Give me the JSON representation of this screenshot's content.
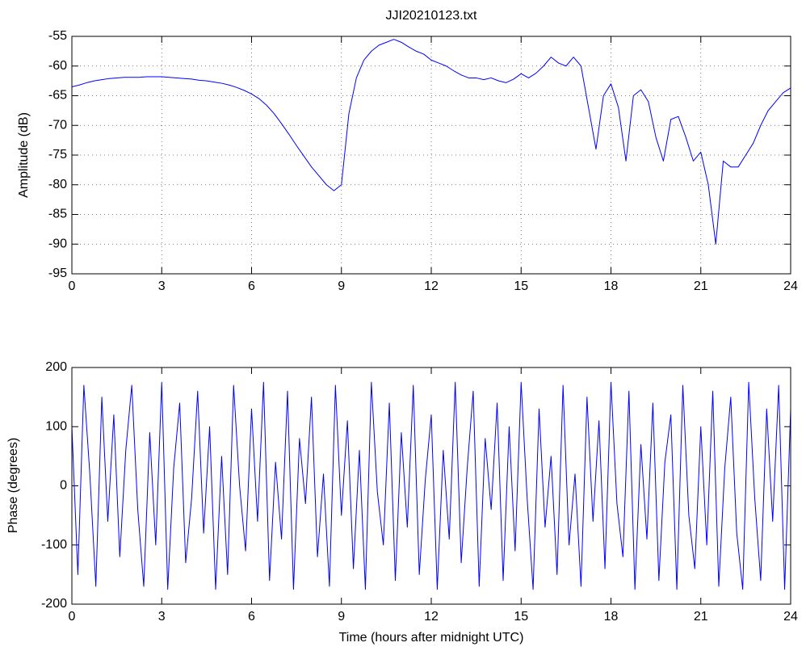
{
  "chart_data": [
    {
      "type": "line",
      "title": "JJI20210123.txt",
      "ylabel": "Amplitude (dB)",
      "color": "#0000ff",
      "grid": true,
      "xlim": [
        0,
        24
      ],
      "xticks": [
        0,
        3,
        6,
        9,
        12,
        15,
        18,
        21,
        24
      ],
      "ylim": [
        -95,
        -55
      ],
      "yticks": [
        -95,
        -90,
        -85,
        -80,
        -75,
        -70,
        -65,
        -60,
        -55
      ],
      "x": [
        0,
        0.25,
        0.5,
        0.75,
        1,
        1.25,
        1.5,
        1.75,
        2,
        2.25,
        2.5,
        2.75,
        3,
        3.25,
        3.5,
        3.75,
        4,
        4.25,
        4.5,
        4.75,
        5,
        5.25,
        5.5,
        5.75,
        6,
        6.25,
        6.5,
        6.75,
        7,
        7.25,
        7.5,
        7.75,
        8,
        8.25,
        8.5,
        8.75,
        9,
        9.25,
        9.5,
        9.75,
        10,
        10.25,
        10.5,
        10.75,
        11,
        11.25,
        11.5,
        11.75,
        12,
        12.25,
        12.5,
        12.75,
        13,
        13.25,
        13.5,
        13.75,
        14,
        14.25,
        14.5,
        14.75,
        15,
        15.25,
        15.5,
        15.75,
        16,
        16.25,
        16.5,
        16.75,
        17,
        17.25,
        17.5,
        17.75,
        18,
        18.25,
        18.5,
        18.75,
        19,
        19.25,
        19.5,
        19.75,
        20,
        20.25,
        20.5,
        20.75,
        21,
        21.25,
        21.5,
        21.75,
        22,
        22.25,
        22.5,
        22.75,
        23,
        23.25,
        23.5,
        23.75,
        24
      ],
      "values": [
        -63.5,
        -63.2,
        -62.8,
        -62.5,
        -62.3,
        -62.1,
        -62,
        -61.9,
        -61.9,
        -61.9,
        -61.8,
        -61.8,
        -61.8,
        -61.9,
        -62,
        -62.1,
        -62.2,
        -62.4,
        -62.5,
        -62.7,
        -62.9,
        -63.2,
        -63.6,
        -64.1,
        -64.7,
        -65.5,
        -66.6,
        -68,
        -69.7,
        -71.5,
        -73.4,
        -75.2,
        -77,
        -78.5,
        -80,
        -81,
        -80,
        -68,
        -62,
        -59,
        -57.5,
        -56.5,
        -56,
        -55.5,
        -56,
        -56.8,
        -57.5,
        -58,
        -59,
        -59.5,
        -60,
        -60.8,
        -61.5,
        -62,
        -62,
        -62.3,
        -62,
        -62.5,
        -62.8,
        -62.2,
        -61.3,
        -62,
        -61.2,
        -60,
        -58.5,
        -59.5,
        -60,
        -58.5,
        -60,
        -67,
        -74,
        -65,
        -63,
        -67,
        -76,
        -65,
        -64,
        -66,
        -72,
        -76,
        -69,
        -68.5,
        -72,
        -76,
        -74.5,
        -80,
        -90,
        -76,
        -77,
        -77,
        -75,
        -73,
        -70,
        -67.5,
        -66,
        -64.5,
        -63.7
      ]
    },
    {
      "type": "line",
      "ylabel": "Phase (degrees)",
      "xlabel": "Time (hours after midnight UTC)",
      "color": "#0000ff",
      "grid": false,
      "xlim": [
        0,
        24
      ],
      "xticks": [
        0,
        3,
        6,
        9,
        12,
        15,
        18,
        21,
        24
      ],
      "ylim": [
        -200,
        200
      ],
      "yticks": [
        -200,
        -100,
        0,
        100,
        200
      ],
      "x": [
        0,
        0.2,
        0.4,
        0.6,
        0.8,
        1,
        1.2,
        1.4,
        1.6,
        1.8,
        2,
        2.2,
        2.4,
        2.6,
        2.8,
        3,
        3.2,
        3.4,
        3.6,
        3.8,
        4,
        4.2,
        4.4,
        4.6,
        4.8,
        5,
        5.2,
        5.4,
        5.6,
        5.8,
        6,
        6.2,
        6.4,
        6.6,
        6.8,
        7,
        7.2,
        7.4,
        7.6,
        7.8,
        8,
        8.2,
        8.4,
        8.6,
        8.8,
        9,
        9.2,
        9.4,
        9.6,
        9.8,
        10,
        10.2,
        10.4,
        10.6,
        10.8,
        11,
        11.2,
        11.4,
        11.6,
        11.8,
        12,
        12.2,
        12.4,
        12.6,
        12.8,
        13,
        13.2,
        13.4,
        13.6,
        13.8,
        14,
        14.2,
        14.4,
        14.6,
        14.8,
        15,
        15.2,
        15.4,
        15.6,
        15.8,
        16,
        16.2,
        16.4,
        16.6,
        16.8,
        17,
        17.2,
        17.4,
        17.6,
        17.8,
        18,
        18.2,
        18.4,
        18.6,
        18.8,
        19,
        19.2,
        19.4,
        19.6,
        19.8,
        20,
        20.2,
        20.4,
        20.6,
        20.8,
        21,
        21.2,
        21.4,
        21.6,
        21.8,
        22,
        22.2,
        22.4,
        22.6,
        22.8,
        23,
        23.2,
        23.4,
        23.6,
        23.8,
        24
      ],
      "values": [
        100,
        -150,
        170,
        20,
        -170,
        150,
        -60,
        120,
        -120,
        60,
        170,
        -40,
        -170,
        90,
        -100,
        175,
        -175,
        30,
        140,
        -130,
        -20,
        160,
        -80,
        100,
        -175,
        50,
        -150,
        170,
        0,
        -110,
        130,
        -60,
        175,
        -160,
        40,
        -90,
        160,
        -175,
        80,
        -30,
        150,
        -120,
        20,
        -170,
        170,
        -50,
        110,
        -140,
        60,
        -175,
        175,
        -10,
        -100,
        140,
        -160,
        90,
        -70,
        170,
        -150,
        10,
        120,
        -175,
        60,
        -90,
        175,
        -130,
        30,
        160,
        -170,
        80,
        -40,
        140,
        -160,
        100,
        -110,
        175,
        -20,
        -175,
        130,
        -70,
        50,
        -150,
        170,
        -100,
        20,
        -170,
        150,
        -60,
        110,
        -140,
        175,
        -30,
        -120,
        160,
        -175,
        70,
        -90,
        140,
        -160,
        40,
        120,
        -175,
        170,
        -50,
        -140,
        100,
        -100,
        160,
        -170,
        30,
        150,
        -80,
        -175,
        175,
        -20,
        -160,
        130,
        -60,
        170,
        -175,
        130
      ]
    }
  ]
}
